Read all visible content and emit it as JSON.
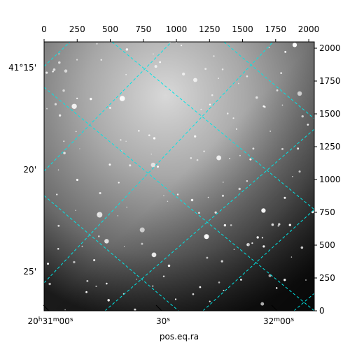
{
  "chart_data": {
    "type": "image",
    "xlabel": "pos.eq.ra",
    "xlim": [
      0,
      2042
    ],
    "ylim": [
      0,
      2048
    ],
    "xticks": [
      0,
      250,
      500,
      750,
      1000,
      1250,
      1500,
      1750,
      2000
    ],
    "yticks": [
      0,
      250,
      500,
      750,
      1000,
      1250,
      1500,
      1750,
      2000
    ],
    "dec_labels": [
      "41°15'",
      "20'",
      "25'"
    ],
    "ra_labels": [
      "20h31m00s",
      "30s",
      "32m00s"
    ],
    "grid_color": "#00e5e5"
  }
}
